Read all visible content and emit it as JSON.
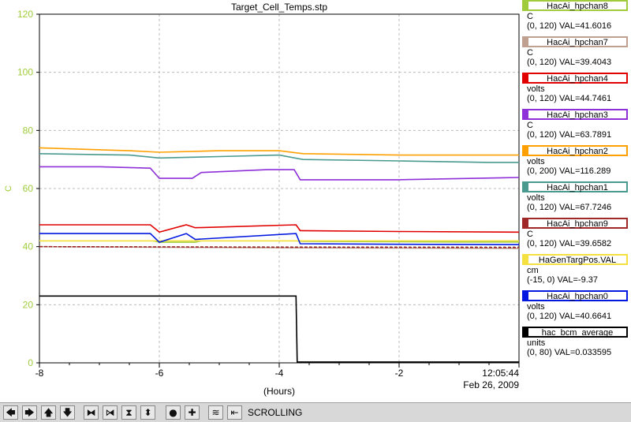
{
  "chart_data": {
    "type": "line",
    "title": "Target_Cell_Temps.stp",
    "xlabel": "(Hours)",
    "ylabel": "C",
    "xlim": [
      -8,
      0
    ],
    "ylim": [
      0,
      120
    ],
    "x_ticks": [
      -8,
      -6,
      -4,
      -2
    ],
    "y_ticks": [
      0,
      20,
      40,
      60,
      80,
      100,
      120
    ],
    "grid": true,
    "legend_position": "right",
    "end_time": "12:05:44",
    "end_date": "Feb 26, 2009",
    "series": [
      {
        "name": "HacAi_hpchan8",
        "color": "#a0cc3c",
        "unit": "C",
        "range": "(0, 120)",
        "val": "VAL=41.6016",
        "x": [
          -8,
          -6.1,
          -6.0,
          -5.4,
          -5.3,
          -3.7,
          -3.6,
          -1,
          0
        ],
        "y": [
          42,
          42,
          41.5,
          41.5,
          42,
          42,
          41.8,
          41.6,
          41.6
        ]
      },
      {
        "name": "HacAi_hpchan7",
        "color": "#c0a090",
        "unit": "C",
        "range": "(0, 120)",
        "val": "VAL=39.4043",
        "x": [
          -8,
          -4,
          0
        ],
        "y": [
          40,
          39.6,
          39.4
        ]
      },
      {
        "name": "HacAi_hpchan4",
        "color": "#e00000",
        "unit": "volts",
        "range": "(0, 120)",
        "val": "VAL=44.7461",
        "x": [
          -8,
          -6.15,
          -6.0,
          -5.55,
          -5.4,
          -3.72,
          -3.65,
          -2,
          0
        ],
        "y": [
          47.5,
          47.5,
          45,
          47.5,
          46.5,
          47.5,
          45.5,
          45.2,
          45
        ]
      },
      {
        "name": "HacAi_hpchan3",
        "color": "#8e2fd8",
        "unit": "C",
        "range": "(0, 120)",
        "val": "VAL=63.7891",
        "x": [
          -8,
          -7,
          -6.15,
          -6.0,
          -5.45,
          -5.3,
          -4.2,
          -3.75,
          -3.65,
          -2,
          0
        ],
        "y": [
          67.5,
          67.5,
          67,
          63.5,
          63.5,
          65.5,
          66.5,
          66.5,
          63,
          63,
          63.8
        ]
      },
      {
        "name": "HacAi_hpchan2",
        "color": "#ffa000",
        "unit": "volts",
        "range": "(0, 200)",
        "val": "VAL=116.289",
        "x": [
          -8,
          -6.5,
          -6.0,
          -5.0,
          -4.0,
          -3.6,
          -2.0,
          -0.5,
          0
        ],
        "y": [
          74,
          73,
          72.5,
          73,
          73,
          72,
          71.5,
          71.5,
          71.5
        ]
      },
      {
        "name": "HacAi_hpchan1",
        "color": "#4a9a90",
        "unit": "volts",
        "range": "(0, 120)",
        "val": "VAL=67.7246",
        "x": [
          -8,
          -6.5,
          -6.0,
          -5.0,
          -4.0,
          -3.6,
          -2.0,
          -0.5,
          0
        ],
        "y": [
          72,
          71.5,
          70.5,
          71,
          71.5,
          70,
          69.5,
          69,
          69
        ]
      },
      {
        "name": "HacAi_hpchan9",
        "color": "#a02828",
        "unit": "C",
        "range": "(0, 120)",
        "val": "VAL=39.6582",
        "x": [
          -8,
          -4,
          0
        ],
        "y": [
          40,
          39.8,
          39.7
        ]
      },
      {
        "name": "HaGenTargPos.VAL",
        "color": "#f4e040",
        "unit": "cm",
        "range": "(-15, 0)",
        "val": "VAL=-9.37",
        "x": [
          -8,
          0
        ],
        "y": [
          42,
          42
        ]
      },
      {
        "name": "HacAi_hpchan0",
        "color": "#0018e0",
        "unit": "volts",
        "range": "(0, 120)",
        "val": "VAL=40.6641",
        "x": [
          -8,
          -6.15,
          -6.0,
          -5.55,
          -5.4,
          -3.72,
          -3.65,
          -2,
          0
        ],
        "y": [
          44.5,
          44.5,
          41.5,
          44.5,
          42.5,
          44.5,
          41,
          40.8,
          40.7
        ]
      },
      {
        "name": "hac_bcm_average",
        "color": "#000000",
        "unit": "units",
        "range": "(0, 80)",
        "val": "VAL=0.033595",
        "x": [
          -8,
          -3.72,
          -3.7,
          0
        ],
        "y": [
          23,
          23,
          0.3,
          0.3
        ]
      }
    ]
  },
  "toolbar": {
    "icons": [
      "left-arrow-icon",
      "right-arrow-icon",
      "up-arrow-icon",
      "down-arrow-icon",
      "zoom-in-x-icon",
      "zoom-out-x-icon",
      "zoom-in-y-icon",
      "zoom-out-y-icon",
      "zoom-out-icon",
      "zoom-in-icon",
      "autoscale-icon",
      "jump-to-end-icon"
    ],
    "glyphs": [
      "🡄",
      "🡆",
      "🡅",
      "🡇",
      "⧓",
      "⧒",
      "⧗",
      "⬍",
      "●",
      "✚",
      "≋",
      "⇤"
    ],
    "status": "SCROLLING"
  }
}
